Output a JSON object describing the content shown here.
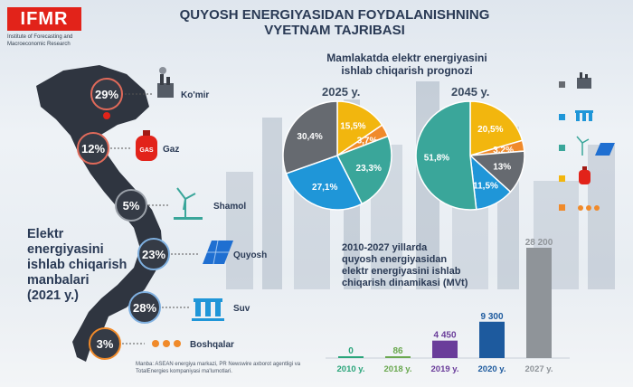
{
  "header": {
    "logo": "IFMR",
    "logo_subtitle": "Institute of Forecasting and Macroeconomic Research",
    "title_line1": "QUYOSH ENERGIYASIDAN FOYDALANISHNING",
    "title_line2": "VYETNAM TAJRIBASI"
  },
  "colors": {
    "coal": "#666a70",
    "hydro": "#1f96d8",
    "wind": "#3aa69a",
    "gas": "#f2b60e",
    "other": "#f08a2a",
    "solar": "#1f6fd1",
    "map": "#2f3540",
    "accent_red": "#e2231a"
  },
  "sources_2021": {
    "title_line1": "Elektr",
    "title_line2": "energiyasini",
    "title_line3": "ishlab chiqarish",
    "title_line4": "manbalari",
    "title_line5": "(2021 y.)",
    "items": [
      {
        "label": "Ko'mir",
        "value": "29%",
        "icon": "coal-plant-icon"
      },
      {
        "label": "Gaz",
        "value": "12%",
        "icon": "gas-cylinder-icon"
      },
      {
        "label": "Shamol",
        "value": "5%",
        "icon": "wind-turbine-icon"
      },
      {
        "label": "Quyosh",
        "value": "23%",
        "icon": "solar-panel-icon"
      },
      {
        "label": "Suv",
        "value": "28%",
        "icon": "hydro-dam-icon"
      },
      {
        "label": "Boshqalar",
        "value": "3%",
        "icon": "dots-icon"
      }
    ]
  },
  "forecast": {
    "title_line1": "Mamlakatda elektr energiyasini",
    "title_line2": "ishlab chiqarish prognozi",
    "pie_2025": {
      "year": "2025 y.",
      "slices": [
        {
          "name": "Gaz",
          "value": 15.5,
          "label": "15,5%",
          "color": "#f2b60e"
        },
        {
          "name": "Boshqalar",
          "value": 3.7,
          "label": "3,7%",
          "color": "#f08a2a"
        },
        {
          "name": "Shamol",
          "value": 23.3,
          "label": "23,3%",
          "color": "#3aa69a"
        },
        {
          "name": "Suv",
          "value": 27.1,
          "label": "27,1%",
          "color": "#1f96d8"
        },
        {
          "name": "Ko'mir",
          "value": 30.4,
          "label": "30,4%",
          "color": "#666a70"
        }
      ]
    },
    "pie_2045": {
      "year": "2045 y.",
      "slices": [
        {
          "name": "Gaz",
          "value": 20.5,
          "label": "20,5%",
          "color": "#f2b60e"
        },
        {
          "name": "Boshqalar",
          "value": 3.2,
          "label": "3,2%",
          "color": "#f08a2a"
        },
        {
          "name": "Ko'mir",
          "value": 13,
          "label": "13%",
          "color": "#666a70"
        },
        {
          "name": "Suv",
          "value": 11.5,
          "label": "11,5%",
          "color": "#1f96d8"
        },
        {
          "name": "Shamol",
          "value": 51.8,
          "label": "51,8%",
          "color": "#3aa69a"
        }
      ]
    }
  },
  "dynamics": {
    "title_line1": "2010-2027 yillarda",
    "title_line2": "quyosh energiyasidan",
    "title_line3": "elektr energiyasini ishlab",
    "title_line4": "chiqarish dinamikasi (MVt)"
  },
  "source_note": "Manba: ASEAN energiya markazi, PR Newswire axborot agentligi va TotalEnergies kompaniyasi ma'lumotlari.",
  "chart_data": [
    {
      "type": "pie",
      "title": "2025 y.",
      "labels": [
        "Gaz",
        "Boshqalar",
        "Shamol",
        "Suv",
        "Ko'mir"
      ],
      "values": [
        15.5,
        3.7,
        23.3,
        27.1,
        30.4
      ]
    },
    {
      "type": "pie",
      "title": "2045 y.",
      "labels": [
        "Gaz",
        "Boshqalar",
        "Ko'mir",
        "Suv",
        "Shamol"
      ],
      "values": [
        20.5,
        3.2,
        13,
        11.5,
        51.8
      ]
    },
    {
      "type": "bar",
      "title": "2010-2027 yillarda quyosh energiyasidan elektr energiyasini ishlab chiqarish dinamikasi (MVt)",
      "categories": [
        "2010 y.",
        "2018 y.",
        "2019 y.",
        "2020 y.",
        "2027 y."
      ],
      "values": [
        0,
        86,
        4450,
        9300,
        28200
      ],
      "value_labels": [
        "0",
        "86",
        "4 450",
        "9 300",
        "28 200"
      ],
      "colors": [
        "#2aa57a",
        "#6aa84f",
        "#6a3d9a",
        "#1d5a9e",
        "#8f9499"
      ],
      "ylim": [
        0,
        28200
      ]
    },
    {
      "type": "table",
      "title": "Elektr energiyasini ishlab chiqarish manbalari (2021 y.)",
      "categories": [
        "Ko'mir",
        "Gaz",
        "Shamol",
        "Quyosh",
        "Suv",
        "Boshqalar"
      ],
      "values": [
        29,
        12,
        5,
        23,
        28,
        3
      ]
    }
  ]
}
